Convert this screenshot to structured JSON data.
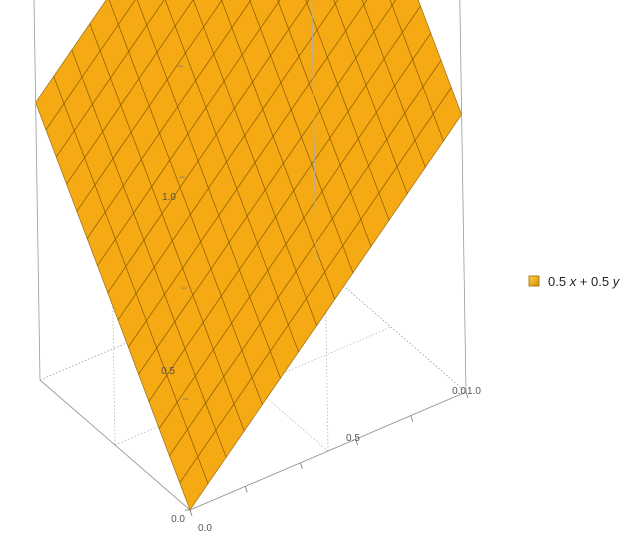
{
  "chart_data": {
    "type": "surface3d",
    "series": [
      {
        "name": "0.5 x + 0.5 y",
        "formula": "0.5 x + 0.5 y",
        "color": "#F5A912"
      }
    ],
    "x_range": [
      0,
      1
    ],
    "y_range": [
      0,
      1
    ],
    "z_range": [
      0,
      1
    ],
    "mesh_divisions": 15,
    "tick_labels": {
      "origin_bottom": "0.0",
      "origin_vertical": "0.0",
      "bottom_mid": "0.5",
      "bottom_end": "1.0",
      "right_end_a": "0.0",
      "vertical_mid": "0.5",
      "vertical_top": "1.0"
    },
    "legend": {
      "placement": "right",
      "parts": [
        "0.5 ",
        "x",
        " + 0.5 ",
        "y"
      ]
    }
  }
}
